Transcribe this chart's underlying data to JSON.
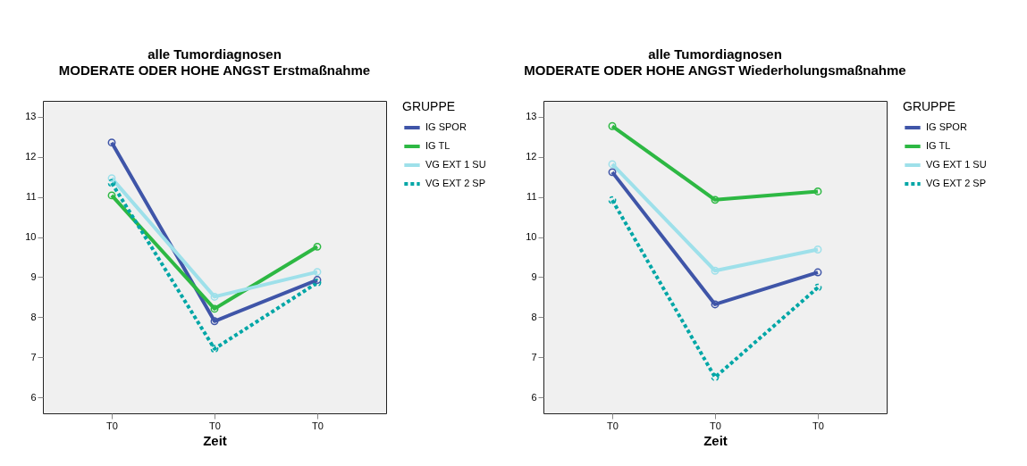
{
  "chart_data": [
    {
      "type": "line",
      "title": "alle Tumordiagnosen",
      "subtitle": "MODERATE ODER HOHE ANGST Erstmaßnahme",
      "xlabel": "Zeit",
      "legend_title": "GRUPPE",
      "categories": [
        "T0",
        "T0",
        "T0"
      ],
      "ylim": [
        5.6,
        13.4
      ],
      "yticks": [
        6,
        7,
        8,
        9,
        10,
        11,
        12,
        13
      ],
      "grid": false,
      "legend": "top right",
      "marker": "circle",
      "series": [
        {
          "name": "IG SPOR",
          "color": "#3f55a8",
          "line_style": "solid",
          "values": [
            12.36,
            7.9,
            8.93
          ]
        },
        {
          "name": "IG TL",
          "color": "#2db843",
          "line_style": "solid",
          "values": [
            11.04,
            8.21,
            9.76
          ]
        },
        {
          "name": "VG EXT 1 SU",
          "color": "#9ee0ea",
          "line_style": "solid",
          "values": [
            11.47,
            8.51,
            9.13
          ]
        },
        {
          "name": "VG EXT 2 SP",
          "color": "#00a6a6",
          "line_style": "dotted",
          "values": [
            11.35,
            7.21,
            8.86
          ]
        }
      ]
    },
    {
      "type": "line",
      "title": "alle Tumordiagnosen",
      "subtitle": "MODERATE ODER HOHE ANGST Wiederholungsmaßnahme",
      "xlabel": "Zeit",
      "legend_title": "GRUPPE",
      "categories": [
        "T0",
        "T0",
        "T0"
      ],
      "ylim": [
        5.6,
        13.4
      ],
      "yticks": [
        6,
        7,
        8,
        9,
        10,
        11,
        12,
        13
      ],
      "grid": false,
      "legend": "top right",
      "marker": "circle",
      "series": [
        {
          "name": "IG SPOR",
          "color": "#3f55a8",
          "line_style": "solid",
          "values": [
            11.62,
            8.32,
            9.12
          ]
        },
        {
          "name": "IG TL",
          "color": "#2db843",
          "line_style": "solid",
          "values": [
            12.77,
            10.93,
            11.14
          ]
        },
        {
          "name": "VG EXT 1 SU",
          "color": "#9ee0ea",
          "line_style": "solid",
          "values": [
            11.82,
            9.16,
            9.69
          ]
        },
        {
          "name": "VG EXT 2 SP",
          "color": "#00a6a6",
          "line_style": "dotted",
          "values": [
            10.92,
            6.5,
            8.74
          ]
        }
      ]
    }
  ]
}
